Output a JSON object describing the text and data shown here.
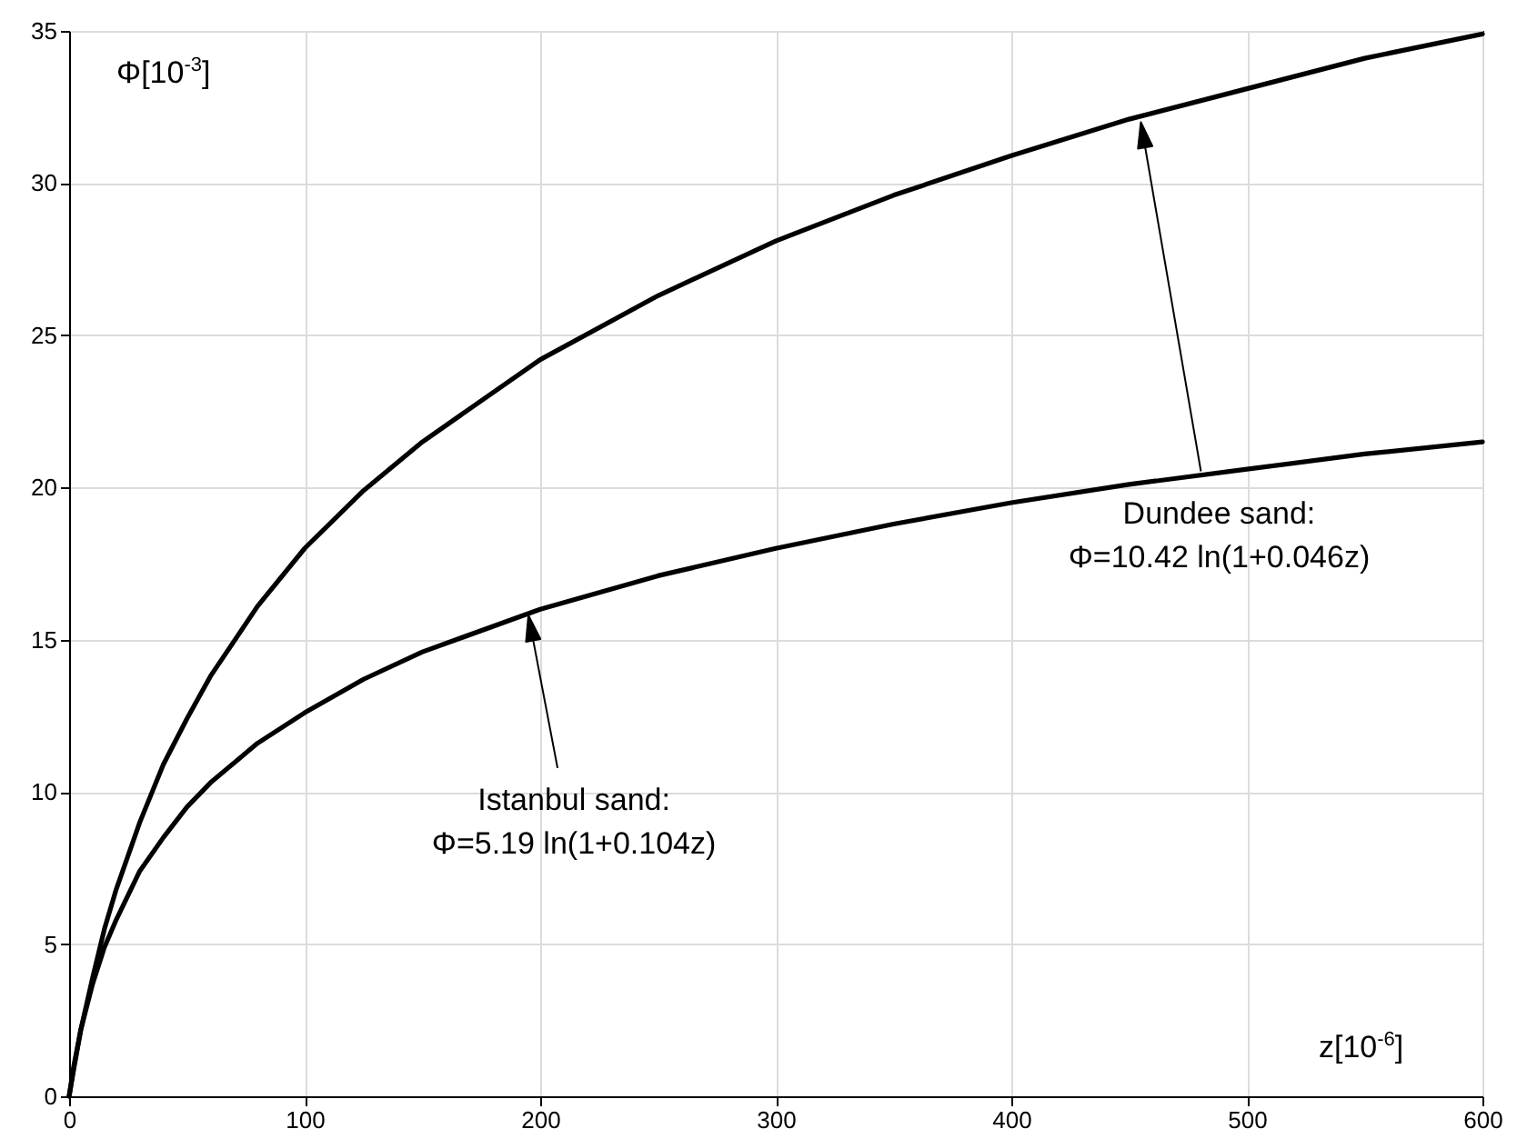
{
  "chart_data": {
    "type": "line",
    "xlabel": "z[10$^{-6}$]",
    "ylabel": "Φ[10$^{-3}$]",
    "x": [
      0,
      2,
      5,
      10,
      15,
      20,
      30,
      40,
      50,
      60,
      80,
      100,
      125,
      150,
      200,
      250,
      300,
      350,
      400,
      450,
      500,
      550,
      600
    ],
    "series": [
      {
        "color": "#000000",
        "values": [
          0,
          0.9,
          2.2,
          3.9,
          5.5,
          6.8,
          9.0,
          10.9,
          12.4,
          13.8,
          16.1,
          18.0,
          19.9,
          21.5,
          24.2,
          26.3,
          28.1,
          29.6,
          30.9,
          32.1,
          33.1,
          34.1,
          34.9
        ]
      },
      {
        "color": "#000000",
        "values": [
          0,
          1.0,
          2.2,
          3.7,
          4.9,
          5.8,
          7.4,
          8.5,
          9.5,
          10.3,
          11.6,
          12.6,
          13.7,
          14.6,
          16.0,
          17.1,
          18.0,
          18.8,
          19.5,
          20.1,
          20.6,
          21.1,
          21.5
        ]
      }
    ],
    "xlim": [
      0,
      600
    ],
    "ylim": [
      0,
      35
    ],
    "xticks": [
      0,
      100,
      200,
      300,
      400,
      500,
      600
    ],
    "yticks": [
      0,
      5,
      10,
      15,
      20,
      25,
      30,
      35
    ],
    "grid": true,
    "annotations": [
      {
        "text": "Dundee sand:\nΦ=10.42 ln(1+0.046z)",
        "x": 455,
        "y": 32
      },
      {
        "text": "Istanbul sand:\nΦ=5.19 ln(1+0.104z)",
        "x": 195,
        "y": 15.8
      }
    ]
  }
}
